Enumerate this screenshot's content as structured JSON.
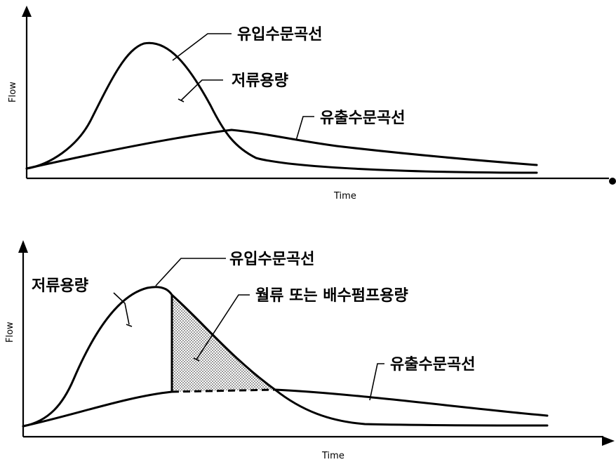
{
  "top_panel": {
    "y_axis_label": "Flow",
    "x_axis_label": "Time",
    "inflow_label": "유입수문곡선",
    "storage_label": "저류용량",
    "outflow_label": "유출수문곡선"
  },
  "bottom_panel": {
    "y_axis_label": "Flow",
    "x_axis_label": "Time",
    "inflow_label": "유입수문곡선",
    "storage_label": "저류용량",
    "overflow_label": "월류 또는 배수펌프용량",
    "outflow_label": "유출수문곡선"
  },
  "colors": {
    "ink": "#000000",
    "hatch_fill": "#bdbdbd"
  }
}
